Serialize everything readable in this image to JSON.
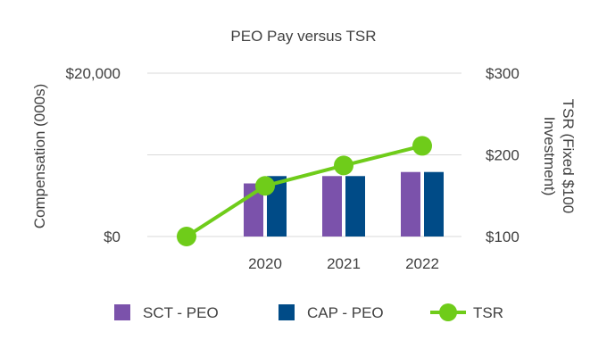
{
  "chart_data": {
    "type": "bar",
    "title": "PEO Pay versus TSR",
    "categories": [
      "",
      "2020",
      "2021",
      "2022"
    ],
    "ylabel": "Compensation (000s)",
    "y2label_line1": "TSR (Fixed $100",
    "y2label_line2": "Investment)",
    "ylim": [
      0,
      20000
    ],
    "y2lim": [
      100,
      300
    ],
    "y_ticks": [
      {
        "value": 0,
        "label": "$0"
      },
      {
        "value": 20000,
        "label": "$20,000"
      }
    ],
    "y2_ticks": [
      {
        "value": 100,
        "label": "$100"
      },
      {
        "value": 200,
        "label": "$200"
      },
      {
        "value": 300,
        "label": "$300"
      }
    ],
    "series": [
      {
        "name": "SCT - PEO",
        "type": "bar",
        "axis": "left",
        "color": "#7B52AB",
        "values": [
          null,
          6500,
          7400,
          7900
        ]
      },
      {
        "name": "CAP - PEO",
        "type": "bar",
        "axis": "left",
        "color": "#004B87",
        "values": [
          null,
          7400,
          7400,
          7900
        ]
      },
      {
        "name": "TSR",
        "type": "line",
        "axis": "right",
        "color": "#6FCC1A",
        "values": [
          100,
          162,
          187,
          211
        ]
      }
    ],
    "legend_position": "bottom"
  }
}
